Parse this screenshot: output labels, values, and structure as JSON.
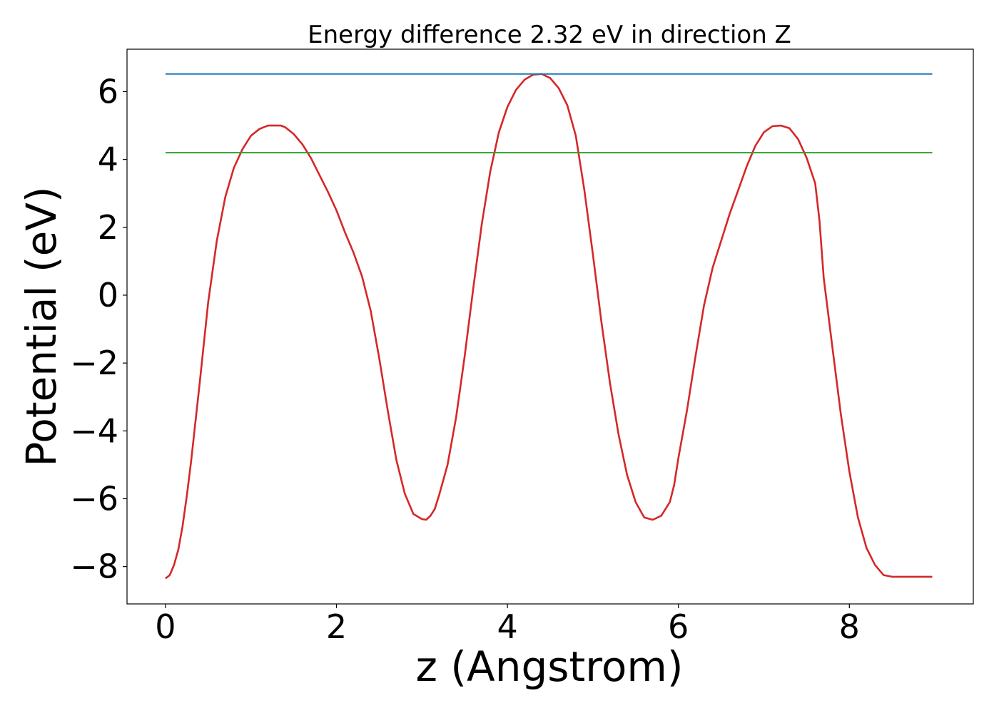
{
  "chart_data": {
    "type": "line",
    "title": "Energy difference 2.32 eV in direction Z",
    "xlabel": "z (Angstrom)",
    "ylabel": "Potential (eV)",
    "xlim": [
      -0.45,
      9.45
    ],
    "ylim": [
      -9.1,
      7.25
    ],
    "xticks": [
      0,
      2,
      4,
      6,
      8
    ],
    "yticks": [
      -8,
      -6,
      -4,
      -2,
      0,
      2,
      4,
      6
    ],
    "grid": false,
    "series": [
      {
        "color": "#d62728",
        "x": [
          0,
          0.05,
          0.1,
          0.15,
          0.2,
          0.25,
          0.3,
          0.4,
          0.5,
          0.6,
          0.7,
          0.8,
          0.9,
          1.0,
          1.1,
          1.2,
          1.3,
          1.35,
          1.4,
          1.5,
          1.6,
          1.7,
          1.8,
          1.9,
          2.0,
          2.1,
          2.2,
          2.3,
          2.4,
          2.5,
          2.6,
          2.7,
          2.8,
          2.9,
          3.0,
          3.05,
          3.1,
          3.15,
          3.2,
          3.3,
          3.4,
          3.5,
          3.6,
          3.7,
          3.8,
          3.9,
          4.0,
          4.1,
          4.2,
          4.3,
          4.4,
          4.5,
          4.55,
          4.6,
          4.7,
          4.8,
          4.9,
          5.0,
          5.1,
          5.2,
          5.3,
          5.4,
          5.5,
          5.6,
          5.7,
          5.8,
          5.9,
          5.95,
          6.0,
          6.1,
          6.2,
          6.3,
          6.4,
          6.5,
          6.6,
          6.7,
          6.8,
          6.9,
          7.0,
          7.1,
          7.2,
          7.3,
          7.4,
          7.5,
          7.6,
          7.65,
          7.7,
          7.8,
          7.9,
          8.0,
          8.1,
          8.2,
          8.3,
          8.4,
          8.5,
          8.6,
          8.7,
          8.8,
          8.9,
          8.97
        ],
        "y": [
          -8.35,
          -8.25,
          -7.95,
          -7.5,
          -6.8,
          -5.9,
          -4.9,
          -2.6,
          -0.2,
          1.6,
          2.9,
          3.75,
          4.3,
          4.7,
          4.9,
          5.0,
          5.0,
          5.0,
          4.95,
          4.75,
          4.45,
          4.05,
          3.55,
          3.05,
          2.5,
          1.85,
          1.25,
          0.55,
          -0.45,
          -1.85,
          -3.4,
          -4.85,
          -5.85,
          -6.45,
          -6.6,
          -6.62,
          -6.5,
          -6.3,
          -5.9,
          -5.0,
          -3.6,
          -1.8,
          0.2,
          2.1,
          3.65,
          4.8,
          5.55,
          6.05,
          6.35,
          6.5,
          6.52,
          6.4,
          6.25,
          6.1,
          5.6,
          4.7,
          3.1,
          1.2,
          -0.8,
          -2.6,
          -4.1,
          -5.3,
          -6.1,
          -6.55,
          -6.62,
          -6.5,
          -6.1,
          -5.6,
          -4.8,
          -3.4,
          -1.8,
          -0.3,
          0.8,
          1.6,
          2.4,
          3.1,
          3.8,
          4.4,
          4.8,
          4.98,
          5.0,
          4.92,
          4.6,
          4.05,
          3.3,
          2.2,
          0.5,
          -1.5,
          -3.5,
          -5.2,
          -6.55,
          -7.45,
          -7.95,
          -8.25,
          -8.3,
          -8.3,
          -8.3,
          -8.3,
          -8.3,
          -8.3
        ]
      },
      {
        "color": "#1f77b4",
        "x": [
          0,
          8.97
        ],
        "y": [
          6.52,
          6.52
        ]
      },
      {
        "color": "#2ca02c",
        "x": [
          0,
          8.97
        ],
        "y": [
          4.2,
          4.2
        ]
      }
    ]
  }
}
